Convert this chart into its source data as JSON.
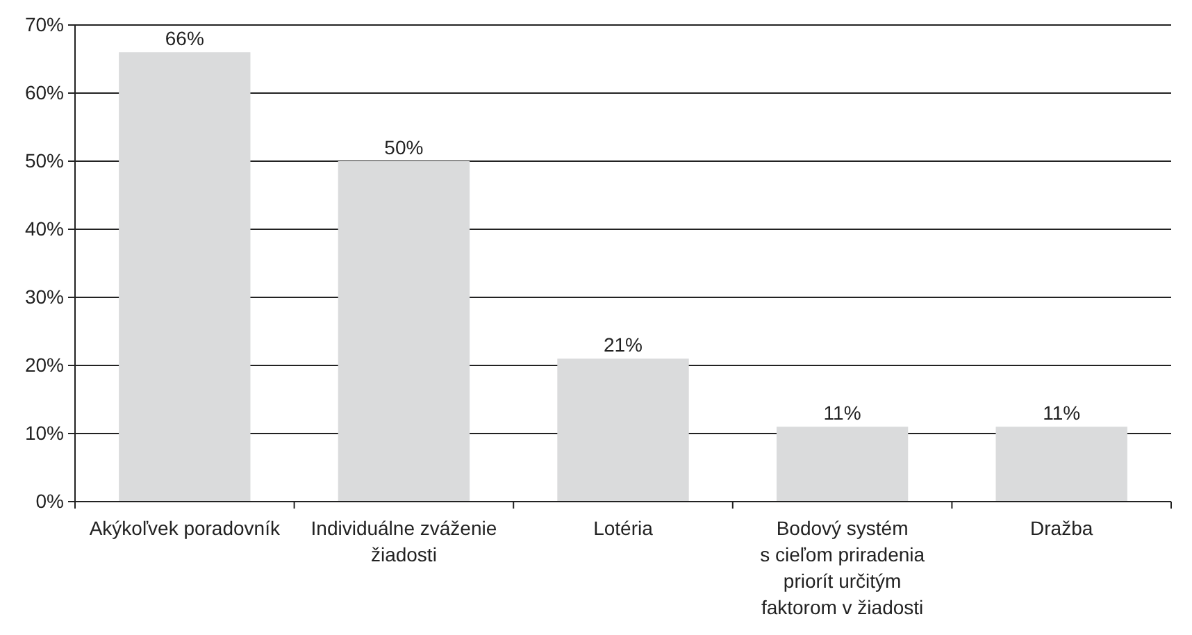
{
  "chart_data": {
    "type": "bar",
    "categories": [
      "Akýkoľvek poradovník",
      "Individuálne zváženie\nžiadosti",
      "Lotéria",
      "Bodový systém\ns cieľom priradenia\npriorít určitým\nfaktorom v žiadosti",
      "Dražba"
    ],
    "values": [
      66,
      50,
      21,
      11,
      11
    ],
    "color": "#dadbdc",
    "value_labels": [
      "66%",
      "50%",
      "21%",
      "11%",
      "11%"
    ],
    "ylim": [
      0,
      70
    ],
    "yticks": [
      {
        "value": 0,
        "label": "0%"
      },
      {
        "value": 10,
        "label": "10%"
      },
      {
        "value": 20,
        "label": "20%"
      },
      {
        "value": 30,
        "label": "30%"
      },
      {
        "value": 40,
        "label": "40%"
      },
      {
        "value": 50,
        "label": "50%"
      },
      {
        "value": 60,
        "label": "60%"
      },
      {
        "value": 70,
        "label": "70%"
      }
    ],
    "grid": "y"
  }
}
